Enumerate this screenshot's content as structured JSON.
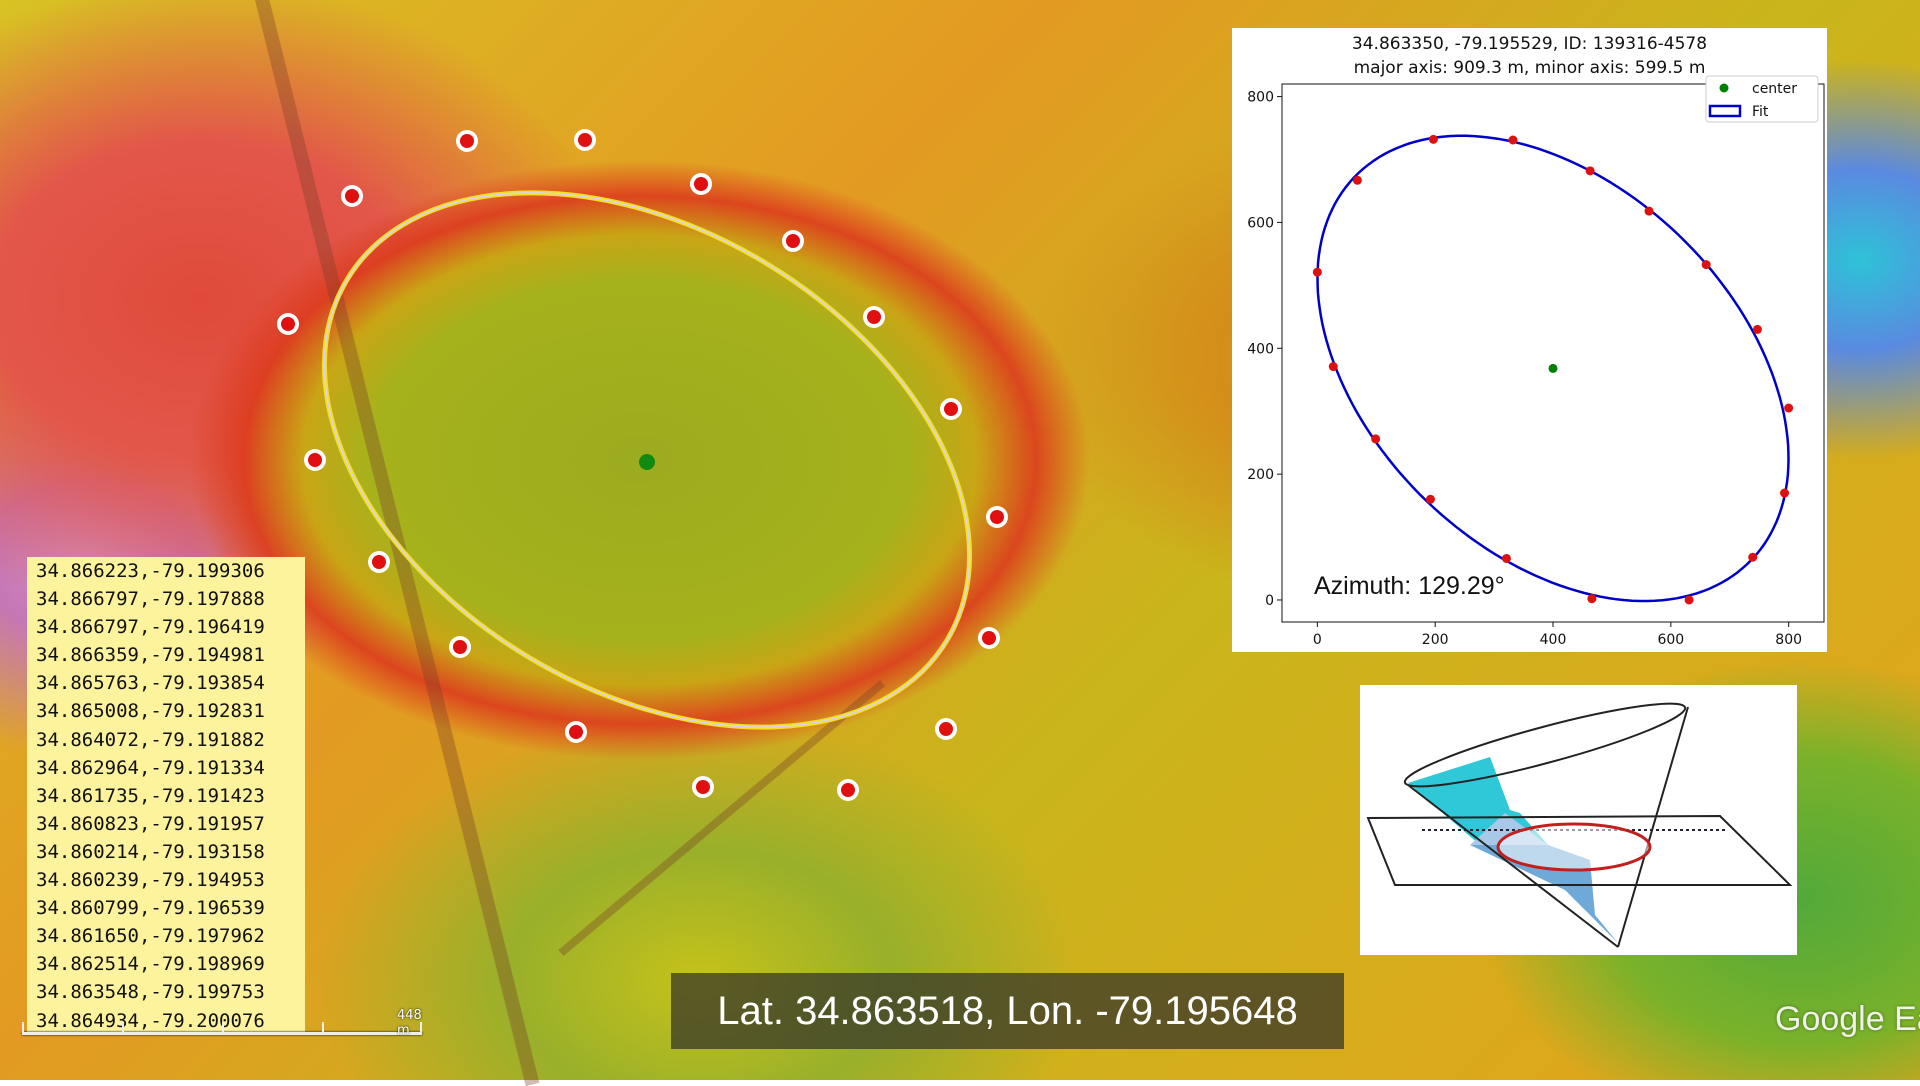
{
  "map": {
    "scale_label": "448 m",
    "center_latlon": "Lat. 34.863518, Lon. -79.195648",
    "attribution": "Google Ea"
  },
  "coordinates": [
    "34.866223,-79.199306",
    "34.866797,-79.197888",
    "34.866797,-79.196419",
    "34.866359,-79.194981",
    "34.865763,-79.193854",
    "34.865008,-79.192831",
    "34.864072,-79.191882",
    "34.862964,-79.191334",
    "34.861735,-79.191423",
    "34.860823,-79.191957",
    "34.860214,-79.193158",
    "34.860239,-79.194953",
    "34.860799,-79.196539",
    "34.861650,-79.197962",
    "34.862514,-79.198969",
    "34.863548,-79.199753",
    "34.864934,-79.200076"
  ],
  "chart_data": {
    "type": "scatter",
    "title": "34.863350, -79.195529, ID: 139316-4578",
    "subtitle": "major axis: 909.3 m, minor axis: 599.5 m",
    "annotation": "Azimuth: 129.29°",
    "legend": {
      "placement": "top-right",
      "entries": [
        "center",
        "Fit"
      ]
    },
    "xlim": [
      -60,
      860
    ],
    "ylim": [
      -35,
      820
    ],
    "xticks": [
      0,
      200,
      400,
      600,
      800
    ],
    "yticks": [
      0,
      200,
      400,
      600,
      800
    ],
    "xtick_labels": [
      "0",
      "200",
      "400",
      "600",
      "800"
    ],
    "ytick_labels": [
      "0",
      "200",
      "400",
      "600",
      "800"
    ],
    "series": [
      {
        "name": "center",
        "color": "#008000",
        "points": [
          [
            400,
            368
          ]
        ]
      },
      {
        "name": "Fit",
        "color": "#0000cc",
        "ellipse": {
          "cx": 400,
          "cy": 368,
          "semi_major": 454.65,
          "semi_minor": 299.75,
          "azimuth_deg": 129.29
        }
      },
      {
        "color": "#dd1111",
        "points": [
          [
            0,
            521
          ],
          [
            68,
            667
          ],
          [
            197,
            732
          ],
          [
            332,
            731
          ],
          [
            463,
            682
          ],
          [
            563,
            618
          ],
          [
            660,
            533
          ],
          [
            747,
            430
          ],
          [
            800,
            305
          ],
          [
            793,
            170
          ],
          [
            739,
            68
          ],
          [
            631,
            0
          ],
          [
            466,
            2
          ],
          [
            321,
            66
          ],
          [
            192,
            160
          ],
          [
            99,
            256
          ],
          [
            27,
            371
          ]
        ]
      }
    ]
  },
  "colors": {
    "fit_line": "#0000cc",
    "points": "#dd1111",
    "center": "#008000",
    "map_outline": "#f0e020"
  }
}
